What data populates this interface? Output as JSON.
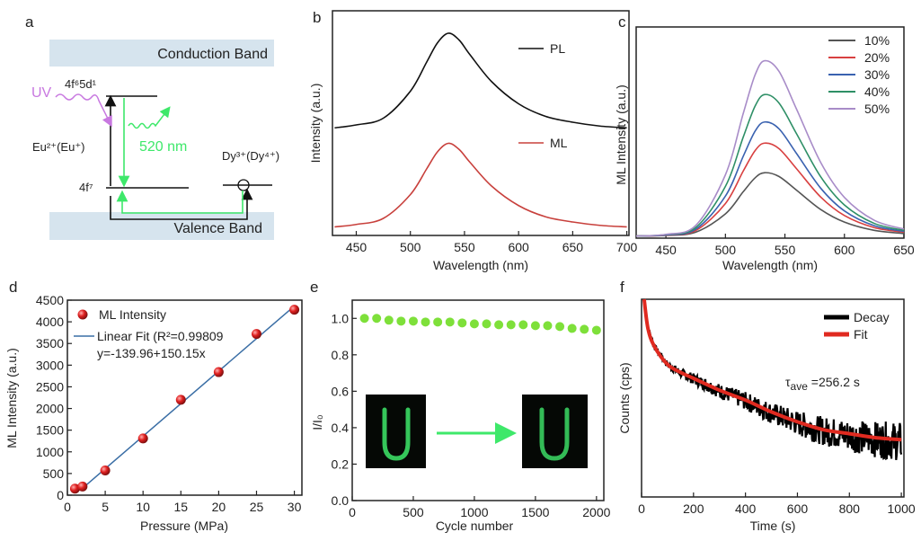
{
  "panel_labels": {
    "a": "a",
    "b": "b",
    "c": "c",
    "d": "d",
    "e": "e",
    "f": "f"
  },
  "colors": {
    "band": "#d6e4ee",
    "green": "#3ee86a",
    "uv": "#c878e0",
    "pl": "#111111",
    "ml": "#c8403c",
    "fit_blue": "#3a6ea5",
    "point_red": "#e02020",
    "decay": "#000000",
    "fit_red": "#e02a20",
    "cycle_green": "#7ee03a"
  },
  "diagram": {
    "conduction_band": "Conduction Band",
    "valence_band": "Valence Band",
    "excited_level": "4f⁶5d¹",
    "ground_level": "4f⁷",
    "uv": "UV",
    "emission": "520 nm",
    "eu_ion": "Eu²⁺(Eu⁺)",
    "dy_ion": "Dy³⁺(Dy⁴⁺)"
  },
  "chart_data": [
    {
      "id": "b",
      "type": "line",
      "xlabel": "Wavelength (nm)",
      "ylabel": "Intensity (a.u.)",
      "xlim": [
        428,
        702
      ],
      "ylim": [
        0,
        1
      ],
      "xticks": [
        450,
        500,
        550,
        600,
        650,
        700
      ],
      "x": [
        430,
        450,
        475,
        500,
        515,
        525,
        535,
        545,
        555,
        575,
        600,
        625,
        650,
        675,
        700
      ],
      "series": [
        {
          "name": "PL",
          "color": "#111111",
          "values": [
            0.479,
            0.492,
            0.522,
            0.642,
            0.771,
            0.857,
            0.9,
            0.87,
            0.805,
            0.685,
            0.586,
            0.53,
            0.504,
            0.487,
            0.479
          ]
        },
        {
          "name": "ML",
          "color": "#c8403c",
          "values": [
            0.038,
            0.049,
            0.076,
            0.182,
            0.296,
            0.372,
            0.41,
            0.383,
            0.326,
            0.22,
            0.133,
            0.083,
            0.06,
            0.045,
            0.038
          ]
        }
      ]
    },
    {
      "id": "c",
      "type": "line",
      "xlabel": "Wavelength (nm)",
      "ylabel": "ML Intensity (a.u.)",
      "xlim": [
        425,
        650
      ],
      "ylim": [
        0,
        1
      ],
      "xticks": [
        450,
        500,
        550,
        600,
        650
      ],
      "legend_position": "top-right",
      "x": [
        425,
        450,
        475,
        500,
        515,
        525,
        533,
        545,
        560,
        580,
        600,
        625,
        650
      ],
      "series": [
        {
          "name": "10%",
          "color": "#555555",
          "values": [
            0.01,
            0.013,
            0.028,
            0.115,
            0.22,
            0.286,
            0.31,
            0.292,
            0.226,
            0.136,
            0.076,
            0.037,
            0.022
          ]
        },
        {
          "name": "20%",
          "color": "#d84040",
          "values": [
            0.01,
            0.014,
            0.036,
            0.164,
            0.318,
            0.415,
            0.45,
            0.424,
            0.327,
            0.195,
            0.107,
            0.05,
            0.028
          ]
        },
        {
          "name": "30%",
          "color": "#3a62b0",
          "values": [
            0.01,
            0.015,
            0.042,
            0.199,
            0.388,
            0.507,
            0.55,
            0.518,
            0.399,
            0.237,
            0.129,
            0.059,
            0.032
          ]
        },
        {
          "name": "40%",
          "color": "#2e8f66",
          "values": [
            0.01,
            0.017,
            0.05,
            0.245,
            0.479,
            0.626,
            0.68,
            0.64,
            0.492,
            0.291,
            0.157,
            0.07,
            0.037
          ]
        },
        {
          "name": "50%",
          "color": "#a88cc8",
          "values": [
            0.01,
            0.018,
            0.06,
            0.3,
            0.591,
            0.774,
            0.84,
            0.79,
            0.608,
            0.359,
            0.193,
            0.085,
            0.043
          ]
        }
      ]
    },
    {
      "id": "d",
      "type": "scatter",
      "xlabel": "Pressure (MPa)",
      "ylabel": "ML Intensity (a.u.)",
      "xlim": [
        0,
        31
      ],
      "ylim": [
        0,
        4500
      ],
      "xticks": [
        0,
        5,
        10,
        15,
        20,
        25,
        30
      ],
      "yticks": [
        0,
        500,
        1000,
        1500,
        2000,
        2500,
        3000,
        3500,
        4000,
        4500
      ],
      "points": {
        "name": "ML Intensity",
        "x": [
          1,
          2,
          5,
          10,
          15,
          20,
          25,
          30
        ],
        "y": [
          150,
          200,
          570,
          1310,
          2200,
          2840,
          3720,
          4280
        ]
      },
      "fit": {
        "name": "Linear Fit (R²=0.99809",
        "equation": "y=-139.96+150.15x",
        "intercept": -139.96,
        "slope": 150.15,
        "x_range": [
          2,
          30
        ]
      }
    },
    {
      "id": "e",
      "type": "scatter",
      "xlabel": "Cycle number",
      "ylabel": "I/I₀",
      "xlim": [
        0,
        2060
      ],
      "ylim": [
        0,
        1.1
      ],
      "xticks": [
        0,
        500,
        1000,
        1500,
        2000
      ],
      "yticks": [
        0.0,
        0.2,
        0.4,
        0.6,
        0.8,
        1.0
      ],
      "ytick_labels": [
        "0.0",
        "0.2",
        "0.4",
        "0.6",
        "0.8",
        "1.0"
      ],
      "x": [
        100,
        200,
        300,
        400,
        500,
        600,
        700,
        800,
        900,
        1000,
        1100,
        1200,
        1300,
        1400,
        1500,
        1600,
        1700,
        1800,
        1900,
        2000
      ],
      "y": [
        1.0,
        1.0,
        0.99,
        0.985,
        0.985,
        0.98,
        0.98,
        0.98,
        0.975,
        0.97,
        0.97,
        0.965,
        0.965,
        0.965,
        0.96,
        0.96,
        0.955,
        0.945,
        0.94,
        0.935
      ]
    },
    {
      "id": "f",
      "type": "line",
      "xlabel": "Time (s)",
      "ylabel": "Counts (cps)",
      "xlim": [
        0,
        1010
      ],
      "ylim": [
        0,
        1
      ],
      "xticks": [
        0,
        200,
        400,
        600,
        800,
        1000
      ],
      "legend_position": "top-right",
      "annotation": {
        "symbol": "τ",
        "subscript": "ave",
        "value": " =256.2 s"
      },
      "x": [
        10,
        25,
        50,
        100,
        150,
        200,
        300,
        400,
        500,
        600,
        700,
        800,
        900,
        1000
      ],
      "series": [
        {
          "name": "Decay",
          "color": "#000000",
          "values": [
            1.0,
            0.85,
            0.76,
            0.67,
            0.63,
            0.6,
            0.54,
            0.49,
            0.43,
            0.38,
            0.34,
            0.32,
            0.3,
            0.29
          ]
        },
        {
          "name": "Fit",
          "color": "#e02a20",
          "values": [
            1.0,
            0.85,
            0.76,
            0.67,
            0.63,
            0.6,
            0.54,
            0.49,
            0.43,
            0.38,
            0.34,
            0.32,
            0.3,
            0.29
          ]
        }
      ]
    }
  ]
}
